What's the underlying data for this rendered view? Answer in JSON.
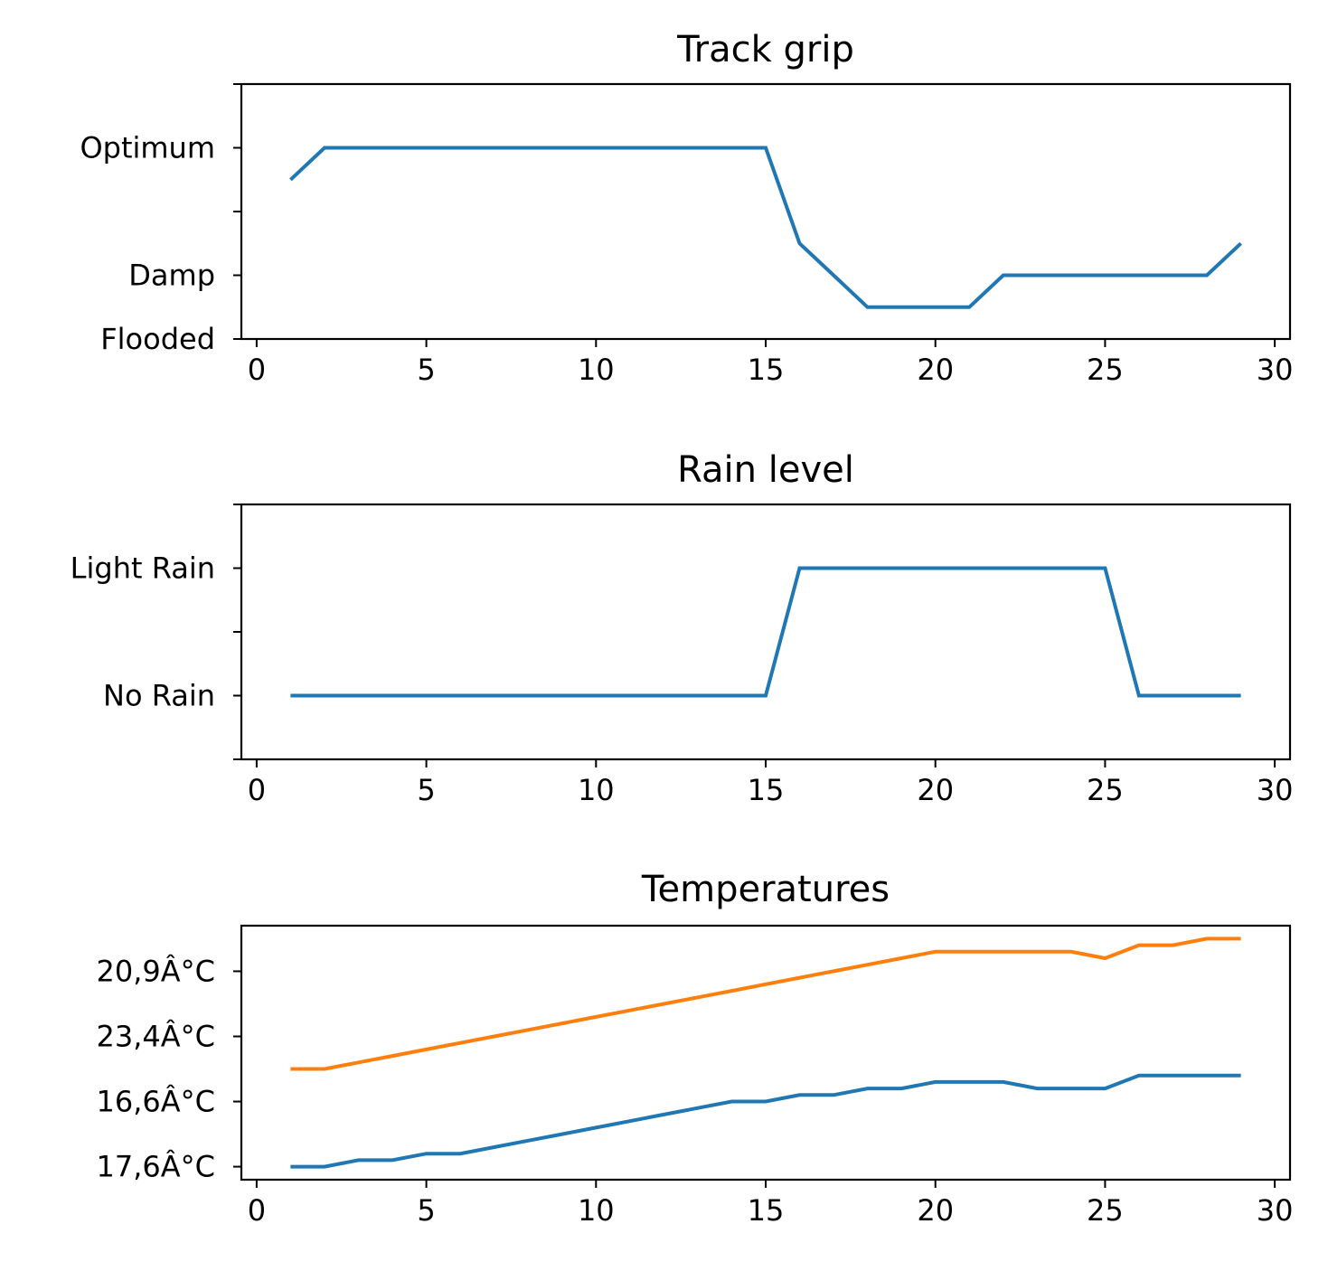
{
  "colors": {
    "blue": "#1f77b4",
    "orange": "#ff7f0e"
  },
  "chart_data": [
    {
      "type": "line",
      "title": "Track grip",
      "xlabel": "",
      "ylabel": "",
      "xlim": [
        -0.45,
        30.45
      ],
      "xticks": [
        0,
        5,
        10,
        15,
        20,
        25,
        30
      ],
      "ylim": [
        0,
        4
      ],
      "yticks": [
        {
          "value": 0,
          "label": "Flooded"
        },
        {
          "value": 1,
          "label": "Damp"
        },
        {
          "value": 2,
          "label": ""
        },
        {
          "value": 3,
          "label": "Optimum"
        },
        {
          "value": 4,
          "label": ""
        }
      ],
      "series": [
        {
          "color": "#1f77b4",
          "x": [
            1,
            2,
            3,
            4,
            5,
            6,
            7,
            8,
            9,
            10,
            11,
            12,
            13,
            14,
            15,
            16,
            17,
            18,
            19,
            20,
            21,
            22,
            23,
            24,
            25,
            26,
            27,
            28,
            29
          ],
          "y": [
            2.5,
            3,
            3,
            3,
            3,
            3,
            3,
            3,
            3,
            3,
            3,
            3,
            3,
            3,
            3,
            1.5,
            1,
            0.5,
            0.5,
            0.5,
            0.5,
            1,
            1,
            1,
            1,
            1,
            1,
            1,
            1.5
          ]
        }
      ]
    },
    {
      "type": "line",
      "title": "Rain level",
      "xlabel": "",
      "ylabel": "",
      "xlim": [
        -0.45,
        30.45
      ],
      "xticks": [
        0,
        5,
        10,
        15,
        20,
        25,
        30
      ],
      "ylim": [
        -0.5,
        1.5
      ],
      "yticks": [
        {
          "value": -0.5,
          "label": ""
        },
        {
          "value": 0,
          "label": "No Rain"
        },
        {
          "value": 0.5,
          "label": ""
        },
        {
          "value": 1,
          "label": "Light Rain"
        },
        {
          "value": 1.5,
          "label": ""
        }
      ],
      "series": [
        {
          "color": "#1f77b4",
          "x": [
            1,
            2,
            3,
            4,
            5,
            6,
            7,
            8,
            9,
            10,
            11,
            12,
            13,
            14,
            15,
            16,
            17,
            18,
            19,
            20,
            21,
            22,
            23,
            24,
            25,
            26,
            27,
            28,
            29
          ],
          "y": [
            0,
            0,
            0,
            0,
            0,
            0,
            0,
            0,
            0,
            0,
            0,
            0,
            0,
            0,
            0,
            1,
            1,
            1,
            1,
            1,
            1,
            1,
            1,
            1,
            1,
            0,
            0,
            0,
            0
          ]
        }
      ]
    },
    {
      "type": "line",
      "title": "Temperatures",
      "xlabel": "",
      "ylabel": "",
      "xlim": [
        -0.45,
        30.45
      ],
      "xticks": [
        0,
        5,
        10,
        15,
        20,
        25,
        30
      ],
      "ylim": [
        -0.2,
        3.7
      ],
      "yticks": [
        {
          "value": 0,
          "label": "17,6Â°C"
        },
        {
          "value": 1,
          "label": "16,6Â°C"
        },
        {
          "value": 2,
          "label": "23,4Â°C"
        },
        {
          "value": 3,
          "label": "20,9Â°C"
        }
      ],
      "series": [
        {
          "color": "#1f77b4",
          "x": [
            1,
            2,
            3,
            4,
            5,
            6,
            7,
            8,
            9,
            10,
            11,
            12,
            13,
            14,
            15,
            16,
            17,
            18,
            19,
            20,
            21,
            22,
            23,
            24,
            25,
            26,
            27,
            28,
            29
          ],
          "y": [
            0,
            0,
            0.1,
            0.1,
            0.2,
            0.2,
            0.3,
            0.4,
            0.5,
            0.6,
            0.7,
            0.8,
            0.9,
            1.0,
            1.0,
            1.1,
            1.1,
            1.2,
            1.2,
            1.3,
            1.3,
            1.3,
            1.2,
            1.2,
            1.2,
            1.4,
            1.4,
            1.4,
            1.4
          ]
        },
        {
          "color": "#ff7f0e",
          "x": [
            1,
            2,
            3,
            4,
            5,
            6,
            7,
            8,
            9,
            10,
            11,
            12,
            13,
            14,
            15,
            16,
            17,
            18,
            19,
            20,
            21,
            22,
            23,
            24,
            25,
            26,
            27,
            28,
            29
          ],
          "y": [
            1.5,
            1.5,
            1.6,
            1.7,
            1.8,
            1.9,
            2.0,
            2.1,
            2.2,
            2.3,
            2.4,
            2.5,
            2.6,
            2.7,
            2.8,
            2.9,
            3.0,
            3.1,
            3.2,
            3.3,
            3.3,
            3.3,
            3.3,
            3.3,
            3.2,
            3.4,
            3.4,
            3.5,
            3.5
          ]
        }
      ]
    }
  ]
}
